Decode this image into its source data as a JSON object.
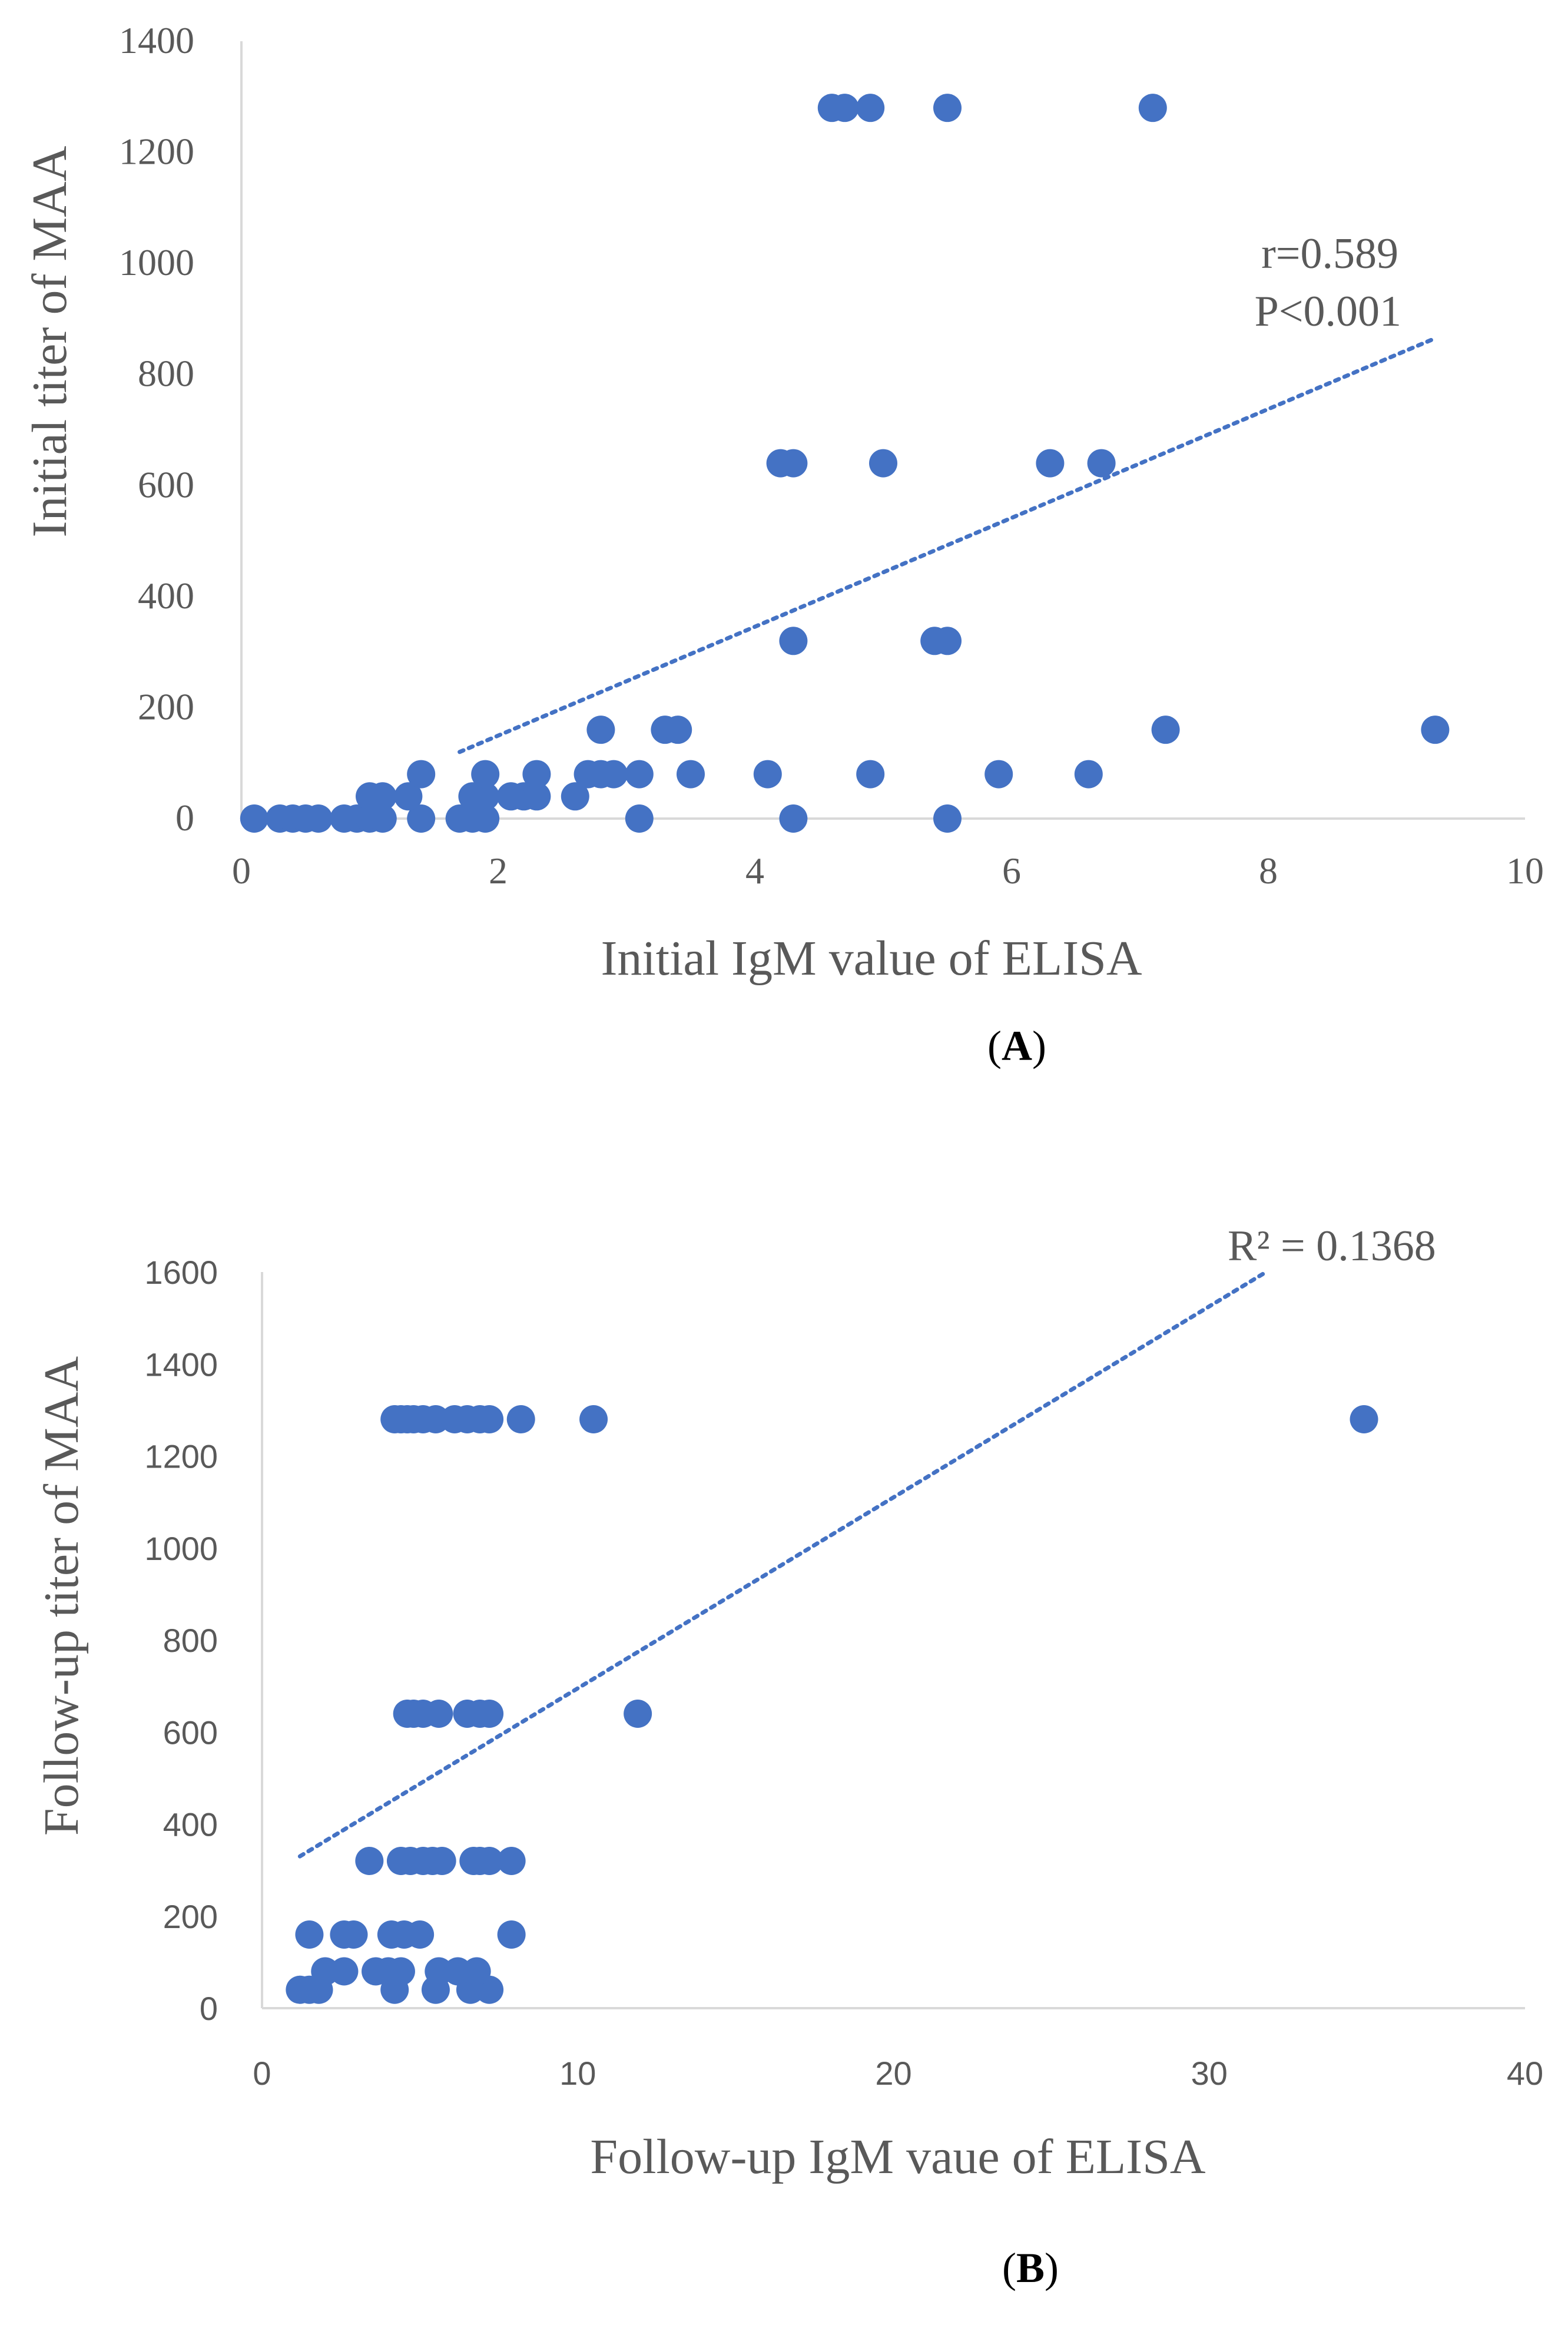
{
  "colors": {
    "point": "#4472C4",
    "trend": "#4472C4",
    "axis": "#D9D9D9",
    "text": "#595959"
  },
  "chart_data": [
    {
      "type": "scatter",
      "panel_label": "(A)",
      "panel_letter": "A",
      "xlabel": "Initial IgM value of ELISA",
      "ylabel": "Initial titer of MAA",
      "xlim": [
        0,
        10
      ],
      "ylim": [
        0,
        1400
      ],
      "xticks": [
        0,
        2,
        4,
        6,
        8,
        10
      ],
      "yticks": [
        0,
        200,
        400,
        600,
        800,
        1000,
        1200,
        1400
      ],
      "tick_font": "serif",
      "grid": false,
      "annotations": [
        "r=0.589",
        "P<0.001"
      ],
      "trendline": {
        "x1": 1.7,
        "y1": 120,
        "x2": 9.3,
        "y2": 865
      },
      "points": [
        [
          0.1,
          0
        ],
        [
          0.3,
          0
        ],
        [
          0.4,
          0
        ],
        [
          0.5,
          0
        ],
        [
          0.6,
          0
        ],
        [
          0.8,
          0
        ],
        [
          0.9,
          0
        ],
        [
          1.0,
          0
        ],
        [
          1.1,
          0
        ],
        [
          1.4,
          0
        ],
        [
          1.7,
          0
        ],
        [
          1.8,
          0
        ],
        [
          1.9,
          0
        ],
        [
          3.1,
          0
        ],
        [
          4.3,
          0
        ],
        [
          5.5,
          0
        ],
        [
          1.0,
          40
        ],
        [
          1.1,
          40
        ],
        [
          1.3,
          40
        ],
        [
          1.8,
          40
        ],
        [
          1.9,
          40
        ],
        [
          2.1,
          40
        ],
        [
          2.2,
          40
        ],
        [
          2.3,
          40
        ],
        [
          2.6,
          40
        ],
        [
          1.4,
          80
        ],
        [
          1.9,
          80
        ],
        [
          2.3,
          80
        ],
        [
          2.7,
          80
        ],
        [
          2.8,
          80
        ],
        [
          2.9,
          80
        ],
        [
          3.1,
          80
        ],
        [
          3.5,
          80
        ],
        [
          4.1,
          80
        ],
        [
          4.9,
          80
        ],
        [
          5.9,
          80
        ],
        [
          6.6,
          80
        ],
        [
          2.8,
          160
        ],
        [
          3.3,
          160
        ],
        [
          3.4,
          160
        ],
        [
          7.2,
          160
        ],
        [
          9.3,
          160
        ],
        [
          4.3,
          320
        ],
        [
          5.4,
          320
        ],
        [
          5.5,
          320
        ],
        [
          4.2,
          640
        ],
        [
          4.3,
          640
        ],
        [
          5.0,
          640
        ],
        [
          6.3,
          640
        ],
        [
          6.7,
          640
        ],
        [
          4.6,
          1280
        ],
        [
          4.7,
          1280
        ],
        [
          4.9,
          1280
        ],
        [
          5.5,
          1280
        ],
        [
          7.1,
          1280
        ]
      ]
    },
    {
      "type": "scatter",
      "panel_label": "(B)",
      "panel_letter": "B",
      "xlabel": "Follow-up IgM vaue of ELISA",
      "ylabel": "Follow-up titer of MAA",
      "xlim": [
        0,
        40
      ],
      "ylim": [
        0,
        1600
      ],
      "xticks": [
        0,
        10,
        20,
        30,
        40
      ],
      "yticks": [
        0,
        200,
        400,
        600,
        800,
        1000,
        1200,
        1400,
        1600
      ],
      "tick_font": "sans",
      "grid": false,
      "annotations": [
        "R² = 0.1368"
      ],
      "trendline": {
        "x1": 1.2,
        "y1": 330,
        "x2": 31.8,
        "y2": 1600
      },
      "points": [
        [
          1.2,
          40
        ],
        [
          1.5,
          40
        ],
        [
          1.8,
          40
        ],
        [
          4.2,
          40
        ],
        [
          5.5,
          40
        ],
        [
          6.6,
          40
        ],
        [
          7.2,
          40
        ],
        [
          2.0,
          80
        ],
        [
          2.6,
          80
        ],
        [
          3.6,
          80
        ],
        [
          4.0,
          80
        ],
        [
          4.4,
          80
        ],
        [
          5.6,
          80
        ],
        [
          6.2,
          80
        ],
        [
          6.8,
          80
        ],
        [
          1.5,
          160
        ],
        [
          2.6,
          160
        ],
        [
          2.9,
          160
        ],
        [
          4.1,
          160
        ],
        [
          4.5,
          160
        ],
        [
          5.0,
          160
        ],
        [
          7.9,
          160
        ],
        [
          3.4,
          320
        ],
        [
          4.4,
          320
        ],
        [
          4.7,
          320
        ],
        [
          5.1,
          320
        ],
        [
          5.4,
          320
        ],
        [
          5.7,
          320
        ],
        [
          6.7,
          320
        ],
        [
          6.9,
          320
        ],
        [
          7.2,
          320
        ],
        [
          7.9,
          320
        ],
        [
          4.6,
          640
        ],
        [
          4.8,
          640
        ],
        [
          5.1,
          640
        ],
        [
          5.6,
          640
        ],
        [
          6.5,
          640
        ],
        [
          6.9,
          640
        ],
        [
          7.2,
          640
        ],
        [
          11.9,
          640
        ],
        [
          4.2,
          1280
        ],
        [
          4.4,
          1280
        ],
        [
          4.6,
          1280
        ],
        [
          4.8,
          1280
        ],
        [
          5.1,
          1280
        ],
        [
          5.5,
          1280
        ],
        [
          6.1,
          1280
        ],
        [
          6.5,
          1280
        ],
        [
          6.9,
          1280
        ],
        [
          7.2,
          1280
        ],
        [
          8.2,
          1280
        ],
        [
          10.5,
          1280
        ],
        [
          34.9,
          1280
        ]
      ]
    }
  ]
}
